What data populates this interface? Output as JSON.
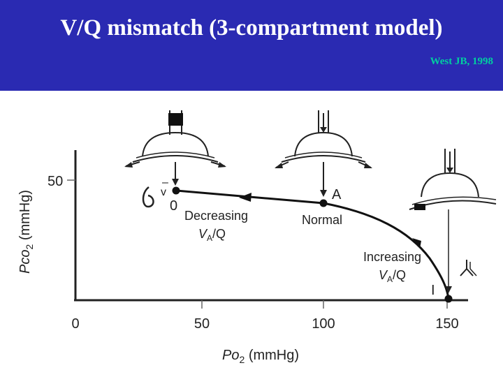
{
  "slide": {
    "title": "V/Q mismatch (3-compartment model)",
    "citation": "West JB, 1998",
    "banner_color": "#2a2ab2",
    "citation_color": "#00d0a0"
  },
  "chart_data": {
    "type": "line",
    "xlabel_main": "Po",
    "xlabel_sub": "2",
    "xlabel_unit": " (mmHg)",
    "ylabel_main": "Pco",
    "ylabel_sub": "2",
    "ylabel_unit": " (mmHg)",
    "xlim": [
      0,
      150
    ],
    "x_ticks": [
      "0",
      "50",
      "100",
      "150"
    ],
    "y_ticks": [
      "50"
    ],
    "points": [
      {
        "name": "v",
        "label": "v",
        "bar": "–",
        "zero": "0",
        "x": 40,
        "y": 46
      },
      {
        "name": "A",
        "label": "A",
        "x": 100,
        "y": 40
      },
      {
        "name": "I",
        "label": "I",
        "x": 150,
        "y": 0
      }
    ],
    "annotations": {
      "decreasing": {
        "word": "Decreasing",
        "ratio": "V",
        "sub": "A",
        "slash": "/Q"
      },
      "normal": "Normal",
      "increasing": {
        "word": "Increasing",
        "ratio": "V",
        "sub": "A",
        "slash": "/Q"
      }
    }
  }
}
